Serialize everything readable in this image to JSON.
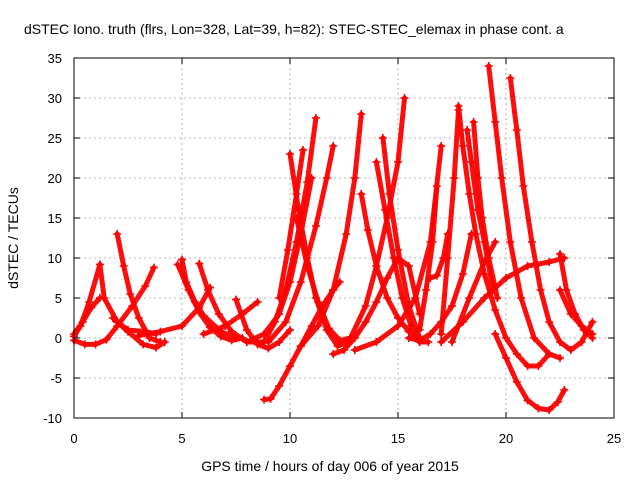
{
  "chart_data": {
    "type": "scatter",
    "title": "dSTEC Iono. truth (flrs, Lon=328, Lat=39, h=82): STEC-STEC_elemax in phase cont. a",
    "xlabel": "GPS time / hours of day 006 of year 2015",
    "ylabel": "dSTEC  / TECUs",
    "xlim": [
      0,
      25
    ],
    "ylim": [
      -10,
      35
    ],
    "x_ticks": [
      0,
      5,
      10,
      15,
      20,
      25
    ],
    "y_ticks": [
      -10,
      -5,
      0,
      5,
      10,
      15,
      20,
      25,
      30,
      35
    ],
    "grid": true,
    "marker": "+",
    "color": "#ff0000",
    "series": [
      {
        "x": [
          0.0,
          0.3,
          0.7,
          1.2,
          1.4,
          2.0,
          2.5,
          3.3,
          3.8
        ],
        "y": [
          0.2,
          1.5,
          4.5,
          9.2,
          5.0,
          2.0,
          1.0,
          0.8,
          0.5
        ]
      },
      {
        "x": [
          0.0,
          0.5,
          1.0,
          1.5,
          2.0,
          2.7,
          3.3,
          3.7
        ],
        "y": [
          -0.3,
          -0.8,
          -0.8,
          -0.2,
          1.5,
          4.0,
          6.5,
          8.8
        ]
      },
      {
        "x": [
          0.0,
          0.4,
          0.8,
          1.2
        ],
        "y": [
          0.5,
          2.0,
          3.8,
          5.0
        ]
      },
      {
        "x": [
          2.0,
          2.3,
          2.6,
          3.0,
          3.5,
          4.0
        ],
        "y": [
          13.0,
          9.0,
          5.5,
          2.5,
          0.0,
          -0.5
        ]
      },
      {
        "x": [
          1.8,
          2.5,
          3.2,
          3.8,
          4.2
        ],
        "y": [
          2.5,
          0.8,
          -0.8,
          -1.2,
          -0.5
        ]
      },
      {
        "x": [
          5.0,
          5.2,
          5.6,
          6.0,
          6.8,
          7.5
        ],
        "y": [
          9.8,
          7.0,
          4.5,
          2.8,
          0.8,
          0.0
        ]
      },
      {
        "x": [
          4.8,
          5.3,
          5.8,
          6.3,
          6.8,
          7.3,
          7.8
        ],
        "y": [
          9.2,
          6.0,
          3.2,
          1.3,
          0.2,
          -0.3,
          0.0
        ]
      },
      {
        "x": [
          5.8,
          6.2,
          6.7,
          7.3,
          8.0,
          8.8
        ],
        "y": [
          9.3,
          6.0,
          3.0,
          0.8,
          -0.5,
          -0.5
        ]
      },
      {
        "x": [
          3.0,
          4.0,
          5.0,
          5.8,
          6.3
        ],
        "y": [
          0.3,
          0.8,
          1.5,
          3.8,
          6.3
        ]
      },
      {
        "x": [
          7.5,
          8.0,
          8.5,
          9.0,
          9.5,
          10.0
        ],
        "y": [
          4.8,
          1.0,
          -0.8,
          -1.3,
          -0.5,
          1.0
        ]
      },
      {
        "x": [
          6.0,
          7.0,
          7.8,
          8.5
        ],
        "y": [
          0.5,
          1.5,
          3.0,
          4.5
        ]
      },
      {
        "x": [
          8.8,
          9.1,
          9.5,
          10.0,
          10.5,
          11.0,
          11.5,
          12.0,
          12.3
        ],
        "y": [
          -7.7,
          -7.6,
          -6.0,
          -3.5,
          -1.0,
          1.5,
          4.0,
          6.0,
          7.0
        ]
      },
      {
        "x": [
          8.0,
          8.8,
          9.5,
          10.0,
          10.5,
          11.0
        ],
        "y": [
          -0.5,
          0.5,
          3.0,
          7.0,
          13.0,
          20.0
        ]
      },
      {
        "x": [
          8.8,
          9.3,
          9.8,
          10.3,
          10.8,
          11.2
        ],
        "y": [
          -0.5,
          2.0,
          6.0,
          12.0,
          19.5,
          27.5
        ]
      },
      {
        "x": [
          9.5,
          9.9,
          10.3,
          10.6
        ],
        "y": [
          5.0,
          11.0,
          18.0,
          23.5
        ]
      },
      {
        "x": [
          10.0,
          10.4,
          10.8,
          11.2,
          11.7,
          12.2,
          12.7
        ],
        "y": [
          23.0,
          16.0,
          10.0,
          5.0,
          1.0,
          -1.0,
          -0.5
        ]
      },
      {
        "x": [
          10.3,
          10.8,
          11.3,
          11.8,
          12.3,
          12.8
        ],
        "y": [
          15.0,
          9.0,
          4.5,
          1.2,
          -0.3,
          0.0
        ]
      },
      {
        "x": [
          9.0,
          9.8,
          10.5,
          11.2,
          11.7,
          12.0
        ],
        "y": [
          -0.5,
          2.0,
          7.0,
          14.0,
          20.0,
          24.0
        ]
      },
      {
        "x": [
          10.5,
          11.3,
          12.0,
          12.6,
          13.0,
          13.3
        ],
        "y": [
          -1.0,
          1.5,
          6.0,
          13.0,
          20.0,
          28.0
        ]
      },
      {
        "x": [
          12.0,
          12.5,
          13.0,
          13.5,
          14.0,
          14.5,
          15.0,
          15.5,
          16.0
        ],
        "y": [
          -2.0,
          -1.5,
          0.0,
          2.0,
          4.5,
          7.5,
          10.0,
          9.0,
          3.0
        ]
      },
      {
        "x": [
          13.3,
          13.6,
          14.0,
          14.5,
          15.0,
          15.5,
          16.0
        ],
        "y": [
          18.0,
          13.5,
          9.0,
          5.0,
          2.5,
          0.8,
          -0.5
        ]
      },
      {
        "x": [
          12.8,
          13.5,
          14.0,
          14.5,
          15.0,
          15.3
        ],
        "y": [
          0.0,
          4.0,
          9.0,
          15.0,
          22.0,
          30.0
        ]
      },
      {
        "x": [
          14.0,
          14.4,
          14.8,
          15.2,
          15.6,
          16.0,
          16.4
        ],
        "y": [
          22.0,
          16.0,
          10.0,
          5.0,
          1.5,
          -0.5,
          -0.5
        ]
      },
      {
        "x": [
          14.3,
          14.6,
          15.0,
          15.5,
          16.0
        ],
        "y": [
          25.0,
          18.0,
          11.0,
          4.0,
          0.0
        ]
      },
      {
        "x": [
          13.0,
          14.0,
          15.0,
          15.8,
          16.5,
          17.0
        ],
        "y": [
          -1.5,
          -0.5,
          1.5,
          5.0,
          12.0,
          24.0
        ]
      },
      {
        "x": [
          15.5,
          16.0,
          16.5,
          17.0,
          17.5,
          18.0,
          18.4
        ],
        "y": [
          0.0,
          -0.3,
          0.5,
          2.0,
          4.0,
          8.0,
          13.0
        ]
      },
      {
        "x": [
          16.0,
          16.3,
          16.6,
          16.8
        ],
        "y": [
          1.0,
          6.0,
          12.0,
          19.0
        ]
      },
      {
        "x": [
          16.5,
          16.8,
          17.1,
          17.3
        ],
        "y": [
          7.5,
          7.8,
          10.0,
          13.0
        ]
      },
      {
        "x": [
          17.0,
          17.3,
          17.6,
          17.8
        ],
        "y": [
          0.5,
          10.0,
          20.0,
          28.5
        ]
      },
      {
        "x": [
          17.8,
          18.0,
          18.3,
          18.6,
          19.0,
          19.5,
          20.0,
          20.5,
          21.0,
          21.5,
          22.0
        ],
        "y": [
          29.0,
          24.0,
          18.0,
          13.0,
          8.0,
          3.5,
          0.0,
          -2.0,
          -3.5,
          -3.5,
          -2.0
        ]
      },
      {
        "x": [
          18.2,
          18.4,
          18.7,
          19.0,
          19.4
        ],
        "y": [
          26.0,
          22.0,
          16.0,
          12.0,
          6.0
        ]
      },
      {
        "x": [
          18.5,
          18.7,
          18.9,
          19.2,
          19.6
        ],
        "y": [
          27.0,
          20.0,
          15.0,
          10.0,
          5.0
        ]
      },
      {
        "x": [
          19.2,
          19.5,
          19.8,
          20.2,
          20.7,
          21.3,
          22.0,
          22.5
        ],
        "y": [
          34.0,
          27.0,
          20.0,
          12.0,
          5.0,
          0.0,
          -2.0,
          -2.5
        ]
      },
      {
        "x": [
          20.2,
          20.5,
          20.8,
          21.2,
          21.6,
          22.0,
          22.5,
          23.0,
          23.5,
          24.0
        ],
        "y": [
          32.5,
          26.0,
          19.0,
          12.0,
          6.0,
          2.0,
          -0.5,
          -1.5,
          -0.5,
          2.0
        ]
      },
      {
        "x": [
          17.0,
          18.0,
          19.0,
          20.0,
          21.0,
          22.0,
          22.7
        ],
        "y": [
          -0.5,
          2.0,
          5.0,
          7.5,
          9.0,
          9.5,
          10.0
        ]
      },
      {
        "x": [
          19.5,
          20.0,
          20.5,
          21.0,
          21.5,
          22.0,
          22.4,
          22.7
        ],
        "y": [
          0.5,
          -2.5,
          -5.5,
          -7.8,
          -8.8,
          -9.0,
          -8.0,
          -6.5
        ]
      },
      {
        "x": [
          17.5,
          18.3,
          19.0,
          19.5
        ],
        "y": [
          -0.5,
          5.0,
          9.5,
          12.0
        ]
      },
      {
        "x": [
          22.5,
          22.8,
          23.2,
          23.6,
          24.0
        ],
        "y": [
          10.5,
          6.0,
          3.0,
          1.0,
          0.0
        ]
      },
      {
        "x": [
          22.5,
          23.0,
          23.5,
          24.0
        ],
        "y": [
          6.0,
          3.0,
          1.5,
          0.5
        ]
      }
    ]
  }
}
